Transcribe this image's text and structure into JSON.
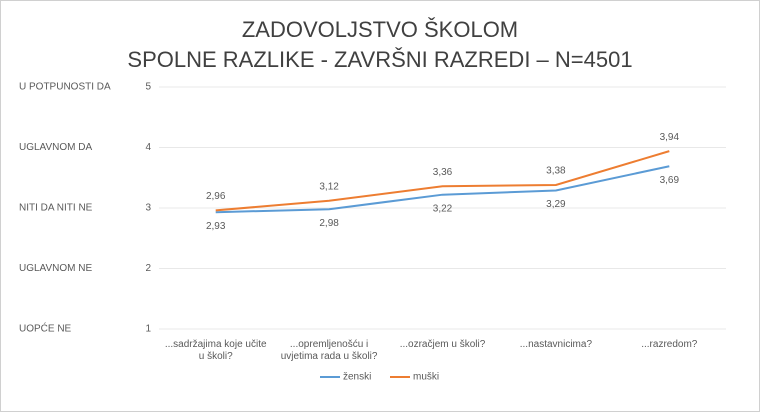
{
  "chart_data": {
    "type": "line",
    "title": "ZADOVOLJSTVO ŠKOLOM",
    "subtitle": "SPOLNE RAZLIKE - ZAVRŠNI RAZREDI – N=4501",
    "categories": [
      "...sadržajima koje učite u školi?",
      "...opremljenošću i uvjetima rada u školi?",
      "...ozračjem u školi?",
      "...nastavnicima?",
      "...razredom?"
    ],
    "series": [
      {
        "name": "ženski",
        "color": "#5b9bd5",
        "values": [
          2.93,
          2.98,
          3.22,
          3.29,
          3.69
        ],
        "value_labels": [
          "2,93",
          "2,98",
          "3,22",
          "3,29",
          "3,69"
        ]
      },
      {
        "name": "muški",
        "color": "#ed7d31",
        "values": [
          2.96,
          3.12,
          3.36,
          3.38,
          3.94
        ],
        "value_labels": [
          "2,96",
          "3,12",
          "3,36",
          "3,38",
          "3,94"
        ]
      }
    ],
    "ylim": [
      1,
      5
    ],
    "yticks": [
      1,
      2,
      3,
      4,
      5
    ],
    "level_labels": [
      "UOPĆE NE",
      "UGLAVNOM NE",
      "NITI DA NITI NE",
      "UGLAVNOM DA",
      "U POTPUNOSTI DA"
    ],
    "grid": true,
    "legend": "bottom"
  }
}
